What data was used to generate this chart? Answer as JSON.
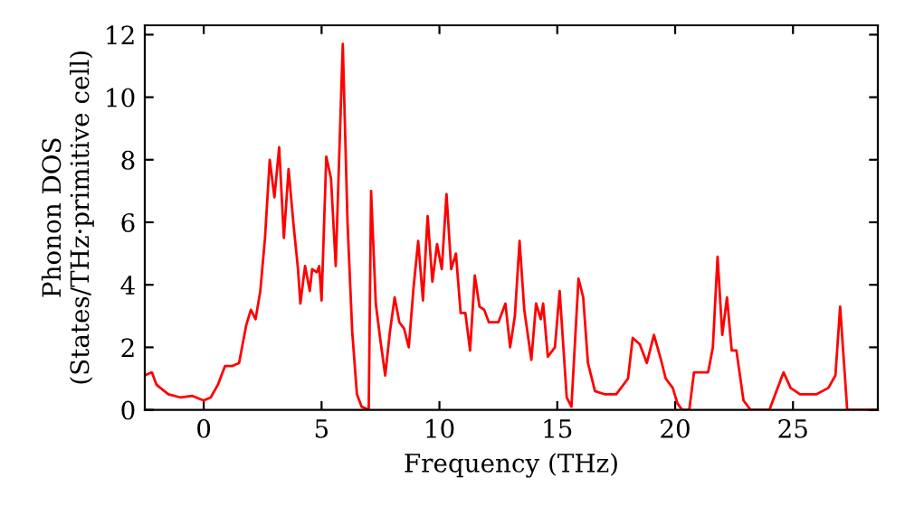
{
  "chart_data": {
    "type": "line",
    "xlabel": "Frequency (THz)",
    "ylabel": "Phonon DOS\n(States/THz·primitive cell)",
    "xlim": [
      -2.5,
      28.6
    ],
    "ylim": [
      0,
      12.3
    ],
    "xticks": [
      0,
      5,
      10,
      15,
      20,
      25
    ],
    "yticks": [
      0,
      2,
      4,
      6,
      8,
      10,
      12
    ],
    "grid": false,
    "legend": false,
    "series": [
      {
        "color": "#ff0000",
        "x": [
          -2.5,
          -2.2,
          -2,
          -1.5,
          -1,
          -0.5,
          0,
          0.3,
          0.6,
          0.9,
          1.2,
          1.5,
          1.8,
          2,
          2.2,
          2.4,
          2.6,
          2.8,
          3.0,
          3.2,
          3.4,
          3.6,
          3.8,
          4.0,
          4.1,
          4.3,
          4.5,
          4.6,
          4.8,
          4.9,
          5.0,
          5.2,
          5.4,
          5.6,
          5.9,
          6.1,
          6.3,
          6.5,
          6.7,
          7.0,
          7.1,
          7.3,
          7.5,
          7.7,
          7.9,
          8.1,
          8.3,
          8.5,
          8.7,
          8.9,
          9.1,
          9.3,
          9.5,
          9.7,
          9.9,
          10.1,
          10.3,
          10.5,
          10.7,
          10.9,
          11.1,
          11.3,
          11.5,
          11.7,
          11.9,
          12.1,
          12.5,
          12.8,
          13.0,
          13.2,
          13.4,
          13.6,
          13.9,
          14.1,
          14.3,
          14.4,
          14.6,
          14.9,
          15.1,
          15.4,
          15.6,
          15.9,
          16.1,
          16.3,
          16.6,
          17,
          17.5,
          18,
          18.2,
          18.5,
          18.8,
          19.1,
          19.4,
          19.6,
          19.9,
          20.1,
          20.3,
          20.6,
          20.8,
          21.1,
          21.4,
          21.6,
          21.8,
          22.0,
          22.2,
          22.4,
          22.6,
          22.9,
          23.2,
          24.0,
          24.6,
          24.9,
          25.3,
          26,
          26.5,
          26.8,
          27.0,
          27.3,
          28.6
        ],
        "values": [
          1.1,
          1.2,
          0.8,
          0.5,
          0.4,
          0.45,
          0.3,
          0.4,
          0.8,
          1.4,
          1.4,
          1.5,
          2.7,
          3.2,
          2.9,
          3.8,
          5.5,
          8.0,
          6.8,
          8.4,
          5.5,
          7.7,
          6,
          4.5,
          3.4,
          4.6,
          3.8,
          4.5,
          4.4,
          4.6,
          3.5,
          8.1,
          7.4,
          4.6,
          11.7,
          6,
          2.5,
          0.5,
          0.1,
          0,
          7.0,
          3.4,
          2.2,
          1.1,
          2.5,
          3.6,
          2.8,
          2.6,
          2.0,
          3.9,
          5.4,
          3.5,
          6.2,
          4.1,
          5.3,
          4.5,
          6.9,
          4.5,
          5.0,
          3.1,
          3.1,
          1.9,
          4.3,
          3.3,
          3.2,
          2.8,
          2.8,
          3.4,
          2.0,
          3.0,
          5.4,
          3.2,
          1.6,
          3.4,
          2.9,
          3.4,
          1.7,
          2.0,
          3.8,
          0.4,
          0.1,
          4.2,
          3.6,
          1.5,
          0.6,
          0.5,
          0.5,
          1.0,
          2.3,
          2.1,
          1.5,
          2.4,
          1.6,
          1.0,
          0.7,
          0.2,
          0,
          0,
          1.2,
          1.2,
          1.2,
          2.0,
          4.9,
          2.4,
          3.6,
          1.9,
          1.9,
          0.3,
          0,
          0,
          1.2,
          0.7,
          0.5,
          0.5,
          0.7,
          1.1,
          3.3,
          0,
          0
        ]
      }
    ]
  }
}
